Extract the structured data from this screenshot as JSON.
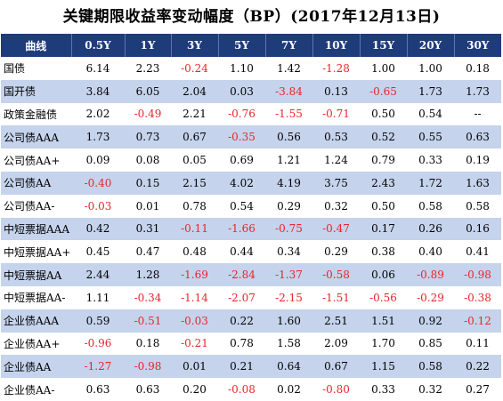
{
  "title": "关键期限收益率变动幅度（BP）(2017年12月13日)",
  "header": [
    "曲线",
    "0.5Y",
    "1Y",
    "3Y",
    "5Y",
    "7Y",
    "10Y",
    "15Y",
    "20Y",
    "30Y"
  ],
  "rows": [
    {
      "name": "国债",
      "values": [
        "6.14",
        "2.23",
        "-0.24",
        "1.10",
        "1.42",
        "-1.28",
        "1.00",
        "1.00",
        "0.18"
      ]
    },
    {
      "name": "国开债",
      "values": [
        "3.84",
        "6.05",
        "2.04",
        "0.03",
        "-3.84",
        "0.13",
        "-0.65",
        "1.73",
        "1.73"
      ]
    },
    {
      "name": "政策金融债",
      "values": [
        "2.02",
        "-0.49",
        "2.21",
        "-0.76",
        "-1.55",
        "-0.71",
        "0.50",
        "0.54",
        "--"
      ]
    },
    {
      "name": "公司债AAA",
      "values": [
        "1.73",
        "0.73",
        "0.67",
        "-0.35",
        "0.56",
        "0.53",
        "0.52",
        "0.55",
        "0.63"
      ]
    },
    {
      "name": "公司债AA+",
      "values": [
        "0.09",
        "0.08",
        "0.05",
        "0.69",
        "1.21",
        "1.24",
        "0.79",
        "0.33",
        "0.19"
      ]
    },
    {
      "name": "公司债AA",
      "values": [
        "-0.40",
        "0.15",
        "2.15",
        "4.02",
        "4.19",
        "3.75",
        "2.43",
        "1.72",
        "1.63"
      ]
    },
    {
      "name": "公司债AA-",
      "values": [
        "-0.03",
        "0.01",
        "0.78",
        "0.54",
        "0.29",
        "0.32",
        "0.50",
        "0.58",
        "0.58"
      ]
    },
    {
      "name": "中短票据AAA",
      "values": [
        "0.42",
        "0.31",
        "-0.11",
        "-1.66",
        "-0.75",
        "-0.47",
        "0.17",
        "0.26",
        "0.16"
      ]
    },
    {
      "name": "中短票据AA+",
      "values": [
        "0.45",
        "0.47",
        "0.48",
        "0.44",
        "0.34",
        "0.29",
        "0.38",
        "0.40",
        "0.41"
      ]
    },
    {
      "name": "中短票据AA",
      "values": [
        "2.44",
        "1.28",
        "-1.69",
        "-2.84",
        "-1.37",
        "-0.58",
        "0.06",
        "-0.89",
        "-0.98"
      ]
    },
    {
      "name": "中短票据AA-",
      "values": [
        "1.11",
        "-0.34",
        "-1.14",
        "-2.07",
        "-2.15",
        "-1.51",
        "-0.56",
        "-0.29",
        "-0.38"
      ]
    },
    {
      "name": "企业债AAA",
      "values": [
        "0.59",
        "-0.51",
        "-0.03",
        "0.22",
        "1.60",
        "2.51",
        "1.51",
        "0.92",
        "-0.12"
      ]
    },
    {
      "name": "企业债AA+",
      "values": [
        "-0.96",
        "0.18",
        "-0.21",
        "0.78",
        "1.58",
        "2.09",
        "1.70",
        "0.85",
        "0.11"
      ]
    },
    {
      "name": "企业债AA",
      "values": [
        "-1.27",
        "-0.98",
        "0.01",
        "0.21",
        "0.64",
        "0.67",
        "1.15",
        "0.58",
        "0.22"
      ]
    },
    {
      "name": "企业债AA-",
      "values": [
        "0.63",
        "0.63",
        "0.20",
        "-0.08",
        "0.02",
        "-0.80",
        "0.33",
        "0.32",
        "0.27"
      ]
    }
  ],
  "colors": {
    "header_bg": "#1f3c7a",
    "header_text": "#ffffff",
    "stripe": "#c5d3ec",
    "negative": "#e8242a"
  }
}
